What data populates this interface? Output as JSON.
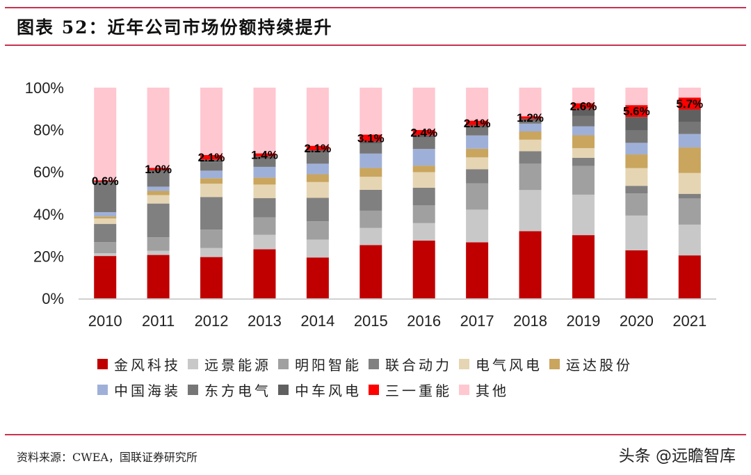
{
  "header": {
    "title": "图表 52：近年公司市场份额持续提升"
  },
  "footer": {
    "source": "资料来源：CWEA，国联证券研究所",
    "watermark": "头条 @远瞻智库"
  },
  "chart_data": {
    "type": "bar",
    "stacked": true,
    "normalized": true,
    "title": "近年公司市场份额持续提升",
    "xlabel": "",
    "ylabel": "",
    "ylim": [
      0,
      100
    ],
    "yticks": [
      "0%",
      "20%",
      "40%",
      "60%",
      "80%",
      "100%"
    ],
    "grid": false,
    "legend_position": "bottom",
    "categories": [
      "2010",
      "2011",
      "2012",
      "2013",
      "2014",
      "2015",
      "2016",
      "2017",
      "2018",
      "2019",
      "2020",
      "2021"
    ],
    "series": [
      {
        "name": "金风科技",
        "color": "#c00000",
        "values": [
          20.1,
          20.6,
          19.6,
          23.3,
          19.4,
          25.3,
          27.4,
          26.6,
          31.9,
          30.0,
          22.8,
          20.4
        ]
      },
      {
        "name": "远景能源",
        "color": "#c8c8c8",
        "values": [
          1.3,
          2.0,
          4.3,
          6.9,
          8.5,
          8.1,
          8.3,
          15.5,
          19.5,
          19.2,
          16.5,
          14.6
        ]
      },
      {
        "name": "明阳智能",
        "color": "#a0a0a0",
        "values": [
          5.3,
          6.4,
          8.7,
          8.2,
          8.7,
          8.2,
          8.4,
          12.5,
          12.5,
          13.6,
          10.5,
          12.4
        ]
      },
      {
        "name": "联合动力",
        "color": "#808080",
        "values": [
          8.6,
          16.0,
          15.5,
          9.2,
          11.1,
          9.9,
          8.4,
          6.7,
          5.9,
          3.9,
          3.6,
          2.2
        ]
      },
      {
        "name": "电气风电",
        "color": "#e6d5b3",
        "values": [
          2.6,
          4.0,
          6.3,
          6.4,
          7.5,
          6.2,
          7.4,
          5.6,
          5.5,
          4.6,
          8.4,
          9.9
        ]
      },
      {
        "name": "运达股份",
        "color": "#c9a55e",
        "values": [
          1.0,
          2.0,
          2.6,
          3.3,
          3.7,
          4.2,
          3.1,
          4.1,
          3.9,
          6.1,
          6.5,
          12.1
        ]
      },
      {
        "name": "中国海装",
        "color": "#9fb0d8",
        "values": [
          2.0,
          2.0,
          3.6,
          5.1,
          5.0,
          6.8,
          7.9,
          6.3,
          3.7,
          4.2,
          5.5,
          6.4
        ]
      },
      {
        "name": "东方电气",
        "color": "#767676",
        "values": [
          14.2,
          7.4,
          4.0,
          3.7,
          5.4,
          4.9,
          5.4,
          3.7,
          1.4,
          4.9,
          5.8,
          5.6
        ]
      },
      {
        "name": "中车风电",
        "color": "#606060",
        "values": [
          0.3,
          0.5,
          1.3,
          1.3,
          1.0,
          1.0,
          1.2,
          1.2,
          0.9,
          3.5,
          6.5,
          6.0
        ]
      },
      {
        "name": "三一重能",
        "color": "#ff0000",
        "values": [
          0.6,
          1.0,
          2.1,
          1.4,
          2.1,
          3.1,
          2.4,
          2.1,
          1.2,
          2.6,
          5.6,
          5.7
        ]
      },
      {
        "name": "其他",
        "color": "#ffc7d0",
        "values": [
          44.0,
          38.1,
          32.0,
          31.2,
          27.6,
          22.3,
          20.1,
          15.7,
          13.6,
          7.4,
          8.3,
          4.7
        ]
      }
    ],
    "data_labels": {
      "series": "三一重能",
      "values": [
        "0.6%",
        "1.0%",
        "2.1%",
        "1.4%",
        "2.1%",
        "3.1%",
        "2.4%",
        "2.1%",
        "1.2%",
        "2.6%",
        "5.6%",
        "5.7%"
      ]
    }
  }
}
